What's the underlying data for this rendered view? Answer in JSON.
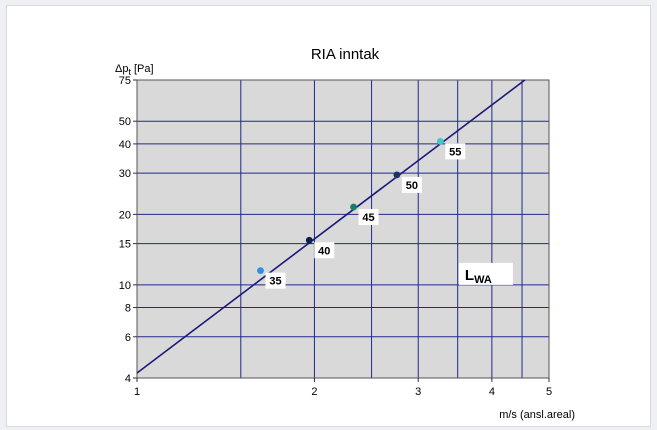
{
  "chart_data": {
    "type": "line",
    "title": "RIA inntak",
    "ylabel": "Δpt [Pa]",
    "ylabel_main": "Δp",
    "ylabel_sub": "t",
    "ylabel_unit": "[Pa]",
    "xlabel": "m/s (ansl.areal)",
    "x_scale": "log",
    "y_scale": "log",
    "xlim": [
      1,
      5
    ],
    "ylim": [
      4,
      75
    ],
    "x_ticks": [
      1,
      2,
      3,
      4,
      5
    ],
    "x_tick_labels": [
      "1",
      "2",
      "3",
      "4",
      "5"
    ],
    "x_minor_grid": [
      1.5,
      2.5,
      3.5,
      4.5
    ],
    "y_ticks": [
      4,
      6,
      8,
      10,
      15,
      20,
      30,
      40,
      50,
      75
    ],
    "y_tick_labels": [
      "4",
      "6",
      "8",
      "10",
      "15",
      "20",
      "30",
      "40",
      "50",
      "75"
    ],
    "grid": true,
    "plot_background": "#d9d9d9",
    "series": [
      {
        "x": [
          1.0,
          4.55
        ],
        "y": [
          4.2,
          75
        ],
        "color": "#1a1a7a"
      }
    ],
    "points": [
      {
        "x": 1.62,
        "y": 11.5,
        "label": "35",
        "color": "#2f8fe6",
        "label_color": "#2c3fbf"
      },
      {
        "x": 1.96,
        "y": 15.5,
        "label": "40",
        "color": "#0c1f4a",
        "label_color": "#0c1f4a"
      },
      {
        "x": 2.33,
        "y": 21.5,
        "label": "45",
        "color": "#1a7a70",
        "label_color": "#1e8a2a"
      },
      {
        "x": 2.76,
        "y": 29.5,
        "label": "50",
        "color": "#1f2f6a",
        "label_color": "#1f2f6a"
      },
      {
        "x": 3.27,
        "y": 41.0,
        "label": "55",
        "color": "#3fc9c9",
        "label_color": "#1a7a70"
      }
    ],
    "annotation": {
      "text": "LWA",
      "main": "L",
      "sub": "WA",
      "x": 3.6,
      "y": 10.5
    }
  }
}
